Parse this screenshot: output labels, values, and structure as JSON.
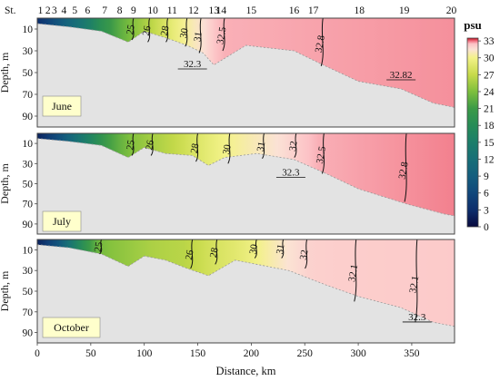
{
  "chart_data": {
    "type": "heatmap",
    "stations": [
      "St.",
      "1",
      "2",
      "3",
      "4",
      "5",
      "6",
      "7",
      "8",
      "9",
      "10",
      "11",
      "12",
      "13",
      "14",
      "15",
      "16",
      "17",
      "18",
      "19",
      "20"
    ],
    "station_km": [
      0,
      3,
      10,
      16,
      25,
      35,
      47,
      63,
      77,
      90,
      108,
      126,
      146,
      165,
      172,
      200,
      240,
      258,
      301,
      343,
      387
    ],
    "xlabel": "Distance, km",
    "ylabel": "Depth, m",
    "xlim": [
      0,
      390
    ],
    "xticks": [
      0,
      50,
      100,
      150,
      200,
      250,
      300,
      350
    ],
    "ylim": [
      0,
      100
    ],
    "yticks": [
      10,
      30,
      50,
      70,
      90
    ],
    "colorbar": {
      "unit": "psu",
      "ticks": [
        0,
        3,
        6,
        9,
        12,
        15,
        18,
        21,
        24,
        27,
        30,
        33
      ],
      "range": [
        0,
        33.5
      ],
      "stops": [
        {
          "v": 0,
          "c": "#08093e"
        },
        {
          "v": 3,
          "c": "#0d2e6c"
        },
        {
          "v": 6,
          "c": "#11477b"
        },
        {
          "v": 9,
          "c": "#145e7e"
        },
        {
          "v": 12,
          "c": "#176f77"
        },
        {
          "v": 15,
          "c": "#1c7e6a"
        },
        {
          "v": 18,
          "c": "#278c57"
        },
        {
          "v": 21,
          "c": "#3b9a47"
        },
        {
          "v": 24,
          "c": "#7dbf3d"
        },
        {
          "v": 27,
          "c": "#c7da4a"
        },
        {
          "v": 30,
          "c": "#f3f288"
        },
        {
          "v": 31.5,
          "c": "#fbe2d6"
        },
        {
          "v": 32.5,
          "c": "#fcc0c5"
        },
        {
          "v": 33,
          "c": "#f07080"
        },
        {
          "v": 33.5,
          "c": "#c01020"
        }
      ]
    },
    "panels": [
      {
        "name": "June",
        "surface_salinity": [
          [
            0,
            3
          ],
          [
            20,
            8
          ],
          [
            45,
            14
          ],
          [
            60,
            19
          ],
          [
            80,
            23
          ],
          [
            95,
            25
          ],
          [
            110,
            27
          ],
          [
            125,
            29
          ],
          [
            140,
            30.5
          ],
          [
            155,
            31.5
          ],
          [
            165,
            32.3
          ],
          [
            175,
            32.6
          ],
          [
            390,
            32.8
          ]
        ],
        "isohalines": [
          {
            "label": "25",
            "x": 90,
            "top": 0,
            "bottom": 20
          },
          {
            "label": "26",
            "x": 105,
            "top": 0,
            "bottom": 22
          },
          {
            "label": "28",
            "x": 122,
            "top": 0,
            "bottom": 22
          },
          {
            "label": "30",
            "x": 140,
            "top": 0,
            "bottom": 26
          },
          {
            "label": "31",
            "x": 153,
            "top": 0,
            "bottom": 32
          },
          {
            "label": "32.5",
            "x": 175,
            "top": 0,
            "bottom": 30
          },
          {
            "label": "32.8",
            "x": 267,
            "top": 0,
            "bottom": 44
          }
        ],
        "annotations": [
          "32.3",
          "32.82"
        ],
        "bottom_depth": [
          [
            0,
            5
          ],
          [
            30,
            8
          ],
          [
            60,
            12
          ],
          [
            85,
            22
          ],
          [
            100,
            12
          ],
          [
            120,
            18
          ],
          [
            140,
            25
          ],
          [
            155,
            32
          ],
          [
            165,
            43
          ],
          [
            195,
            25
          ],
          [
            240,
            30
          ],
          [
            265,
            42
          ],
          [
            300,
            58
          ],
          [
            340,
            65
          ],
          [
            370,
            78
          ],
          [
            390,
            82
          ]
        ]
      },
      {
        "name": "July",
        "surface_salinity": [
          [
            0,
            2
          ],
          [
            20,
            7
          ],
          [
            45,
            15
          ],
          [
            65,
            21
          ],
          [
            85,
            24
          ],
          [
            105,
            25.5
          ],
          [
            130,
            27
          ],
          [
            150,
            28.5
          ],
          [
            175,
            30
          ],
          [
            200,
            30.8
          ],
          [
            225,
            31.5
          ],
          [
            245,
            32.2
          ],
          [
            260,
            32.6
          ],
          [
            390,
            32.9
          ]
        ],
        "isohalines": [
          {
            "label": "25",
            "x": 90,
            "top": 0,
            "bottom": 22
          },
          {
            "label": "26",
            "x": 108,
            "top": 0,
            "bottom": 22
          },
          {
            "label": "28",
            "x": 150,
            "top": 0,
            "bottom": 28
          },
          {
            "label": "30",
            "x": 180,
            "top": 0,
            "bottom": 30
          },
          {
            "label": "31",
            "x": 212,
            "top": 0,
            "bottom": 25
          },
          {
            "label": "32",
            "x": 242,
            "top": 0,
            "bottom": 24
          },
          {
            "label": "32.5",
            "x": 268,
            "top": 0,
            "bottom": 40
          },
          {
            "label": "32.8",
            "x": 345,
            "top": 0,
            "bottom": 68
          }
        ],
        "annotations": [
          "32.3"
        ],
        "bottom_depth": [
          [
            0,
            5
          ],
          [
            30,
            8
          ],
          [
            60,
            12
          ],
          [
            85,
            24
          ],
          [
            100,
            14
          ],
          [
            120,
            20
          ],
          [
            145,
            22
          ],
          [
            160,
            32
          ],
          [
            175,
            24
          ],
          [
            205,
            20
          ],
          [
            240,
            26
          ],
          [
            270,
            40
          ],
          [
            300,
            55
          ],
          [
            345,
            70
          ],
          [
            380,
            80
          ],
          [
            390,
            82
          ]
        ]
      },
      {
        "name": "October",
        "surface_salinity": [
          [
            0,
            2
          ],
          [
            20,
            8
          ],
          [
            45,
            20
          ],
          [
            60,
            24
          ],
          [
            85,
            25
          ],
          [
            110,
            26
          ],
          [
            140,
            26.5
          ],
          [
            165,
            28
          ],
          [
            190,
            29
          ],
          [
            215,
            30.5
          ],
          [
            235,
            31.5
          ],
          [
            255,
            32
          ],
          [
            290,
            32.1
          ],
          [
            390,
            32.2
          ]
        ],
        "isohalines": [
          {
            "label": "25",
            "x": 60,
            "top": 0,
            "bottom": 14
          },
          {
            "label": "26",
            "x": 145,
            "top": 0,
            "bottom": 28
          },
          {
            "label": "28",
            "x": 168,
            "top": 0,
            "bottom": 24
          },
          {
            "label": "30",
            "x": 205,
            "top": 0,
            "bottom": 18
          },
          {
            "label": "31",
            "x": 230,
            "top": 0,
            "bottom": 18
          },
          {
            "label": "32",
            "x": 252,
            "top": 0,
            "bottom": 28
          },
          {
            "label": "32.1",
            "x": 298,
            "top": 0,
            "bottom": 60
          },
          {
            "label": "32.1",
            "x": 355,
            "top": 0,
            "bottom": 80
          }
        ],
        "annotations": [
          "32.3"
        ],
        "bottom_depth": [
          [
            0,
            5
          ],
          [
            30,
            8
          ],
          [
            60,
            14
          ],
          [
            85,
            26
          ],
          [
            100,
            16
          ],
          [
            120,
            20
          ],
          [
            140,
            28
          ],
          [
            160,
            35
          ],
          [
            185,
            20
          ],
          [
            235,
            30
          ],
          [
            270,
            44
          ],
          [
            300,
            55
          ],
          [
            340,
            66
          ],
          [
            370,
            80
          ],
          [
            390,
            84
          ]
        ]
      }
    ]
  }
}
